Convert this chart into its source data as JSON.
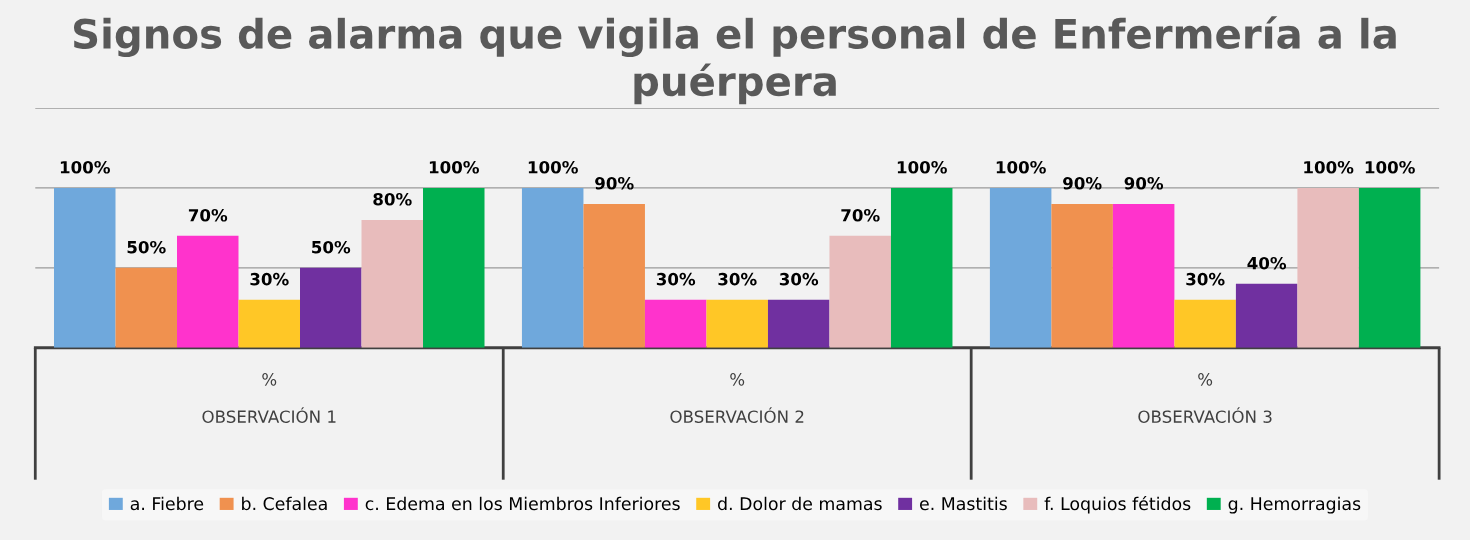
{
  "chart_data": {
    "type": "bar",
    "title": "Signos de alarma que vigila el personal de Enfermería a la puérpera",
    "categories": [
      "%\n\nOBSERVACIÓN 1",
      "%\n\nOBSERVACIÓN 2",
      "%\n\nOBSERVACIÓN 3"
    ],
    "series": [
      {
        "name": "a. Fiebre",
        "color": "#6fa8dc",
        "values": [
          100,
          100,
          100
        ],
        "value_labels": [
          "100%",
          "100%",
          "100%"
        ]
      },
      {
        "name": "b. Cefalea",
        "color": "#f0914f",
        "values": [
          50,
          90,
          90
        ],
        "value_labels": [
          "50%",
          "90%",
          "90%"
        ]
      },
      {
        "name": "c. Edema en los Miembros Inferiores",
        "color": "#ff33cc",
        "values": [
          70,
          30,
          90
        ],
        "value_labels": [
          "70%",
          "30%",
          "90%"
        ]
      },
      {
        "name": "d. Dolor de mamas",
        "color": "#ffc726",
        "values": [
          30,
          30,
          30
        ],
        "value_labels": [
          "30%",
          "30%",
          "30%"
        ]
      },
      {
        "name": "e. Mastitis",
        "color": "#7030a0",
        "values": [
          50,
          30,
          40
        ],
        "value_labels": [
          "50%",
          "30%",
          "40%"
        ]
      },
      {
        "name": "f. Loquios fétidos",
        "color": "#e8bcbc",
        "values": [
          80,
          70,
          100
        ],
        "value_labels": [
          "80%",
          "70%",
          "100%"
        ]
      },
      {
        "name": "g. Hemorragias",
        "color": "#00b050",
        "values": [
          100,
          100,
          100
        ],
        "value_labels": [
          "100%",
          "100%",
          "100%"
        ]
      }
    ],
    "ylim": [
      0,
      150
    ],
    "yticks": [
      {
        "value": 50,
        "label": null
      },
      {
        "value": 100,
        "label": null
      },
      {
        "value": 150,
        "label": null
      }
    ],
    "tick_labels": "x",
    "grid": "y",
    "legend": "bottom"
  }
}
